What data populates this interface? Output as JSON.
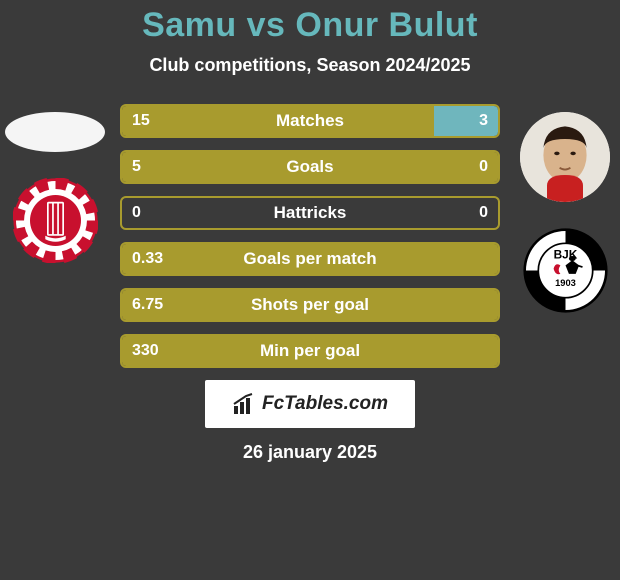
{
  "title": "Samu vs Onur Bulut",
  "subtitle": "Club competitions, Season 2024/2025",
  "date": "26 january 2025",
  "brand": "FcTables.com",
  "colors": {
    "title": "#66b8bc",
    "text": "#ffffff",
    "bg": "#3a3a3a",
    "bar_border": "#a89b2e",
    "fill_left": "#a89b2e",
    "fill_right": "#6fb6bd",
    "logo_bg": "#ffffff"
  },
  "left": {
    "player_name": "Samu",
    "club_name": "Antalyaspor",
    "club_colors": {
      "ring": "#c8102e",
      "inner": "#ffffff"
    }
  },
  "right": {
    "player_name": "Onur Bulut",
    "club_name": "Besiktas",
    "club_colors": {
      "ring": "#000000",
      "inner": "#ffffff",
      "accent": "#c8102e"
    }
  },
  "stats": [
    {
      "label": "Matches",
      "left_val": "15",
      "right_val": "3",
      "left_pct": 83,
      "right_pct": 17
    },
    {
      "label": "Goals",
      "left_val": "5",
      "right_val": "0",
      "left_pct": 100,
      "right_pct": 0
    },
    {
      "label": "Hattricks",
      "left_val": "0",
      "right_val": "0",
      "left_pct": 0,
      "right_pct": 0
    },
    {
      "label": "Goals per match",
      "left_val": "0.33",
      "right_val": "",
      "left_pct": 100,
      "right_pct": 0
    },
    {
      "label": "Shots per goal",
      "left_val": "6.75",
      "right_val": "",
      "left_pct": 100,
      "right_pct": 0
    },
    {
      "label": "Min per goal",
      "left_val": "330",
      "right_val": "",
      "left_pct": 100,
      "right_pct": 0
    }
  ]
}
